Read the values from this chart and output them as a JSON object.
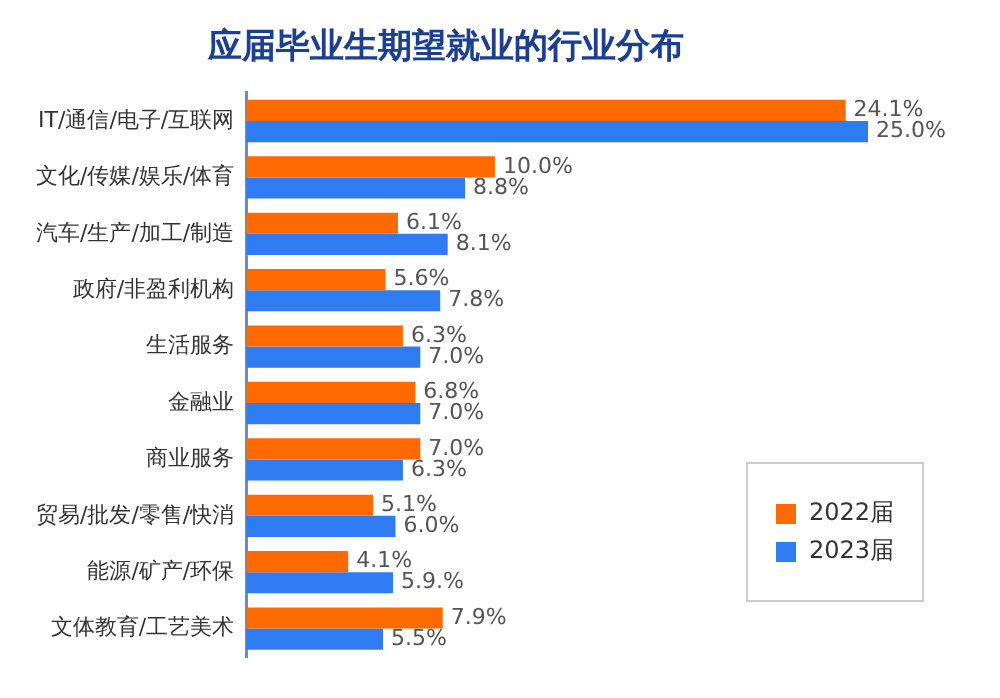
{
  "chart_data": {
    "type": "bar",
    "orientation": "horizontal",
    "title": "应届毕业生期望就业的行业分布",
    "categories": [
      "IT/通信/电子/互联网",
      "文化/传媒/娱乐/体育",
      "汽车/生产/加工/制造",
      "政府/非盈利机构",
      "生活服务",
      "金融业",
      "商业服务",
      "贸易/批发/零售/快消",
      "能源/矿产/环保",
      "文体教育/工艺美术"
    ],
    "series": [
      {
        "name": "2022届",
        "color": "#ff6a00",
        "values": [
          24.1,
          10.0,
          6.1,
          5.6,
          6.3,
          6.8,
          7.0,
          5.1,
          4.1,
          7.9
        ],
        "value_labels": [
          "24.1%",
          "10.0%",
          "6.1%",
          "5.6%",
          "6.3%",
          "6.8%",
          "7.0%",
          "5.1%",
          "4.1%",
          "7.9%"
        ]
      },
      {
        "name": "2023届",
        "color": "#2f7cf2",
        "values": [
          25.0,
          8.8,
          8.1,
          7.8,
          7.0,
          7.0,
          6.3,
          6.0,
          5.9,
          5.5
        ],
        "value_labels": [
          "25.0%",
          "8.8%",
          "8.1%",
          "7.8%",
          "7.0%",
          "7.0%",
          "6.3%",
          "6.0%",
          "5.9.%",
          "5.5%"
        ]
      }
    ],
    "legend": "bottom right",
    "tick_labels": "y"
  }
}
